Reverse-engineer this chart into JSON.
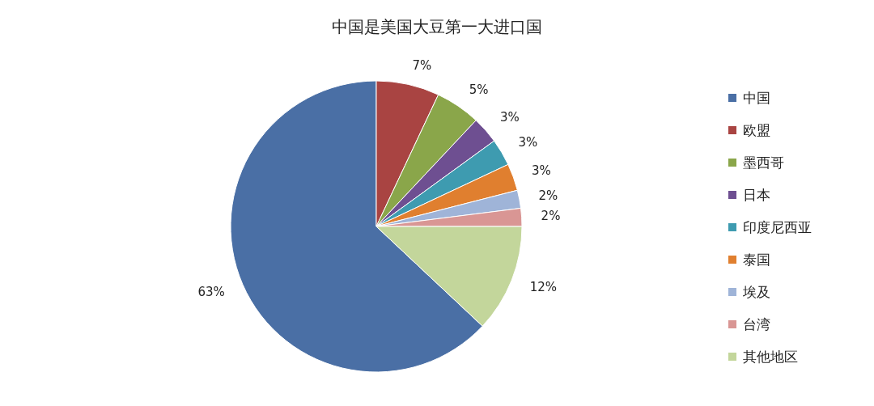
{
  "chart_data": {
    "type": "pie",
    "title": "中国是美国大豆第一大进口国",
    "categories": [
      "中国",
      "欧盟",
      "墨西哥",
      "日本",
      "印度尼西亚",
      "泰国",
      "埃及",
      "台湾",
      "其他地区"
    ],
    "values": [
      63,
      7,
      5,
      3,
      3,
      3,
      2,
      2,
      12
    ],
    "colors": [
      "#4a6fa5",
      "#a94442",
      "#8aa64a",
      "#6e4f91",
      "#3e9bb0",
      "#e07f2f",
      "#9fb4d8",
      "#d99694",
      "#c3d69b"
    ],
    "value_labels": [
      "63%",
      "7%",
      "5%",
      "3%",
      "3%",
      "3%",
      "2%",
      "2%",
      "12%"
    ],
    "legend": "right"
  }
}
